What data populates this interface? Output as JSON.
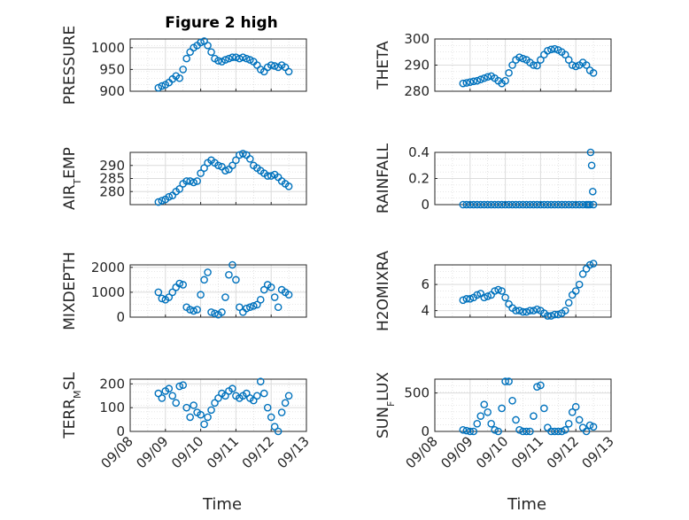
{
  "figure": {
    "title": "Figure 2 high",
    "xlabel": "Time"
  },
  "chart_data": [
    {
      "id": "pressure",
      "type": "scatter",
      "ylabel": "PRESSURE",
      "ylim": [
        900,
        1020
      ],
      "yticks": [
        900,
        950,
        1000
      ],
      "xlim": [
        0,
        5
      ],
      "xtick_labels": [
        "09/08",
        "09/09",
        "09/10",
        "09/11",
        "09/12",
        "09/13"
      ],
      "x": [
        0.8,
        0.9,
        1.0,
        1.1,
        1.2,
        1.3,
        1.4,
        1.5,
        1.6,
        1.7,
        1.8,
        1.9,
        2.0,
        2.1,
        2.2,
        2.3,
        2.4,
        2.5,
        2.6,
        2.7,
        2.8,
        2.9,
        3.0,
        3.1,
        3.2,
        3.3,
        3.4,
        3.5,
        3.6,
        3.7,
        3.8,
        3.9,
        4.0,
        4.1,
        4.2,
        4.3,
        4.4,
        4.5
      ],
      "values": [
        908,
        912,
        915,
        920,
        928,
        935,
        930,
        950,
        975,
        990,
        1000,
        1005,
        1012,
        1015,
        1005,
        990,
        975,
        970,
        968,
        972,
        975,
        978,
        978,
        975,
        978,
        975,
        972,
        968,
        960,
        950,
        945,
        955,
        960,
        958,
        955,
        960,
        955,
        945
      ]
    },
    {
      "id": "theta",
      "type": "scatter",
      "ylabel": "THETA",
      "ylim": [
        280,
        300
      ],
      "yticks": [
        280,
        290,
        300
      ],
      "xlim": [
        0,
        5
      ],
      "xtick_labels": [
        "09/08",
        "09/09",
        "09/10",
        "09/11",
        "09/12",
        "09/13"
      ],
      "x": [
        0.8,
        0.9,
        1.0,
        1.1,
        1.2,
        1.3,
        1.4,
        1.5,
        1.6,
        1.7,
        1.8,
        1.9,
        2.0,
        2.1,
        2.2,
        2.3,
        2.4,
        2.5,
        2.6,
        2.7,
        2.8,
        2.9,
        3.0,
        3.1,
        3.2,
        3.3,
        3.4,
        3.5,
        3.6,
        3.7,
        3.8,
        3.9,
        4.0,
        4.1,
        4.2,
        4.3,
        4.4,
        4.5
      ],
      "values": [
        283,
        283.2,
        283.5,
        283.8,
        284,
        284.5,
        285,
        285.5,
        285.8,
        285,
        284,
        283,
        284,
        287,
        290,
        292,
        293,
        292.5,
        292,
        291,
        290,
        289.8,
        292,
        294,
        295.5,
        296,
        296.2,
        295.8,
        295,
        294,
        292,
        290,
        289.5,
        290,
        291,
        290,
        288,
        287
      ]
    },
    {
      "id": "air_temp",
      "type": "scatter",
      "ylabel": "AIR_TEMP",
      "ylim": [
        275,
        295
      ],
      "yticks": [
        280,
        285,
        290
      ],
      "xlim": [
        0,
        5
      ],
      "xtick_labels": [
        "09/08",
        "09/09",
        "09/10",
        "09/11",
        "09/12",
        "09/13"
      ],
      "x": [
        0.8,
        0.9,
        1.0,
        1.1,
        1.2,
        1.3,
        1.4,
        1.5,
        1.6,
        1.7,
        1.8,
        1.9,
        2.0,
        2.1,
        2.2,
        2.3,
        2.4,
        2.5,
        2.6,
        2.7,
        2.8,
        2.9,
        3.0,
        3.1,
        3.2,
        3.3,
        3.4,
        3.5,
        3.6,
        3.7,
        3.8,
        3.9,
        4.0,
        4.1,
        4.2,
        4.3,
        4.4,
        4.5
      ],
      "values": [
        276,
        276.5,
        277,
        278,
        278.5,
        280,
        281,
        283,
        284,
        284,
        283.5,
        284,
        287,
        289,
        291,
        292,
        291,
        290,
        289.5,
        288,
        288.5,
        290,
        292,
        294,
        294.5,
        294,
        292.5,
        290,
        289,
        288,
        287,
        286,
        286,
        286.5,
        285.5,
        284,
        283,
        282
      ]
    },
    {
      "id": "rainfall",
      "type": "scatter",
      "ylabel": "RAINFALL",
      "ylim": [
        0,
        0.4
      ],
      "yticks": [
        0,
        0.2,
        0.4
      ],
      "xlim": [
        0,
        5
      ],
      "xtick_labels": [
        "09/08",
        "09/09",
        "09/10",
        "09/11",
        "09/12",
        "09/13"
      ],
      "x": [
        0.8,
        0.9,
        1.0,
        1.1,
        1.2,
        1.3,
        1.4,
        1.5,
        1.6,
        1.7,
        1.8,
        1.9,
        2.0,
        2.1,
        2.2,
        2.3,
        2.4,
        2.5,
        2.6,
        2.7,
        2.8,
        2.9,
        3.0,
        3.1,
        3.2,
        3.3,
        3.4,
        3.5,
        3.6,
        3.7,
        3.8,
        3.9,
        4.0,
        4.1,
        4.2,
        4.3,
        4.35,
        4.4,
        4.42,
        4.45,
        4.48,
        4.5
      ],
      "values": [
        0,
        0,
        0,
        0,
        0,
        0,
        0,
        0,
        0,
        0,
        0,
        0,
        0,
        0,
        0,
        0,
        0,
        0,
        0,
        0,
        0,
        0,
        0,
        0,
        0,
        0,
        0,
        0,
        0,
        0,
        0,
        0,
        0,
        0,
        0,
        0,
        0,
        0,
        0.4,
        0.3,
        0.1,
        0
      ]
    },
    {
      "id": "mixdepth",
      "type": "scatter",
      "ylabel": "MIXDEPTH",
      "ylim": [
        0,
        2100
      ],
      "yticks": [
        0,
        1000,
        2000
      ],
      "xlim": [
        0,
        5
      ],
      "xtick_labels": [
        "09/08",
        "09/09",
        "09/10",
        "09/11",
        "09/12",
        "09/13"
      ],
      "x": [
        0.8,
        0.9,
        1.0,
        1.1,
        1.2,
        1.3,
        1.4,
        1.5,
        1.6,
        1.7,
        1.8,
        1.9,
        2.0,
        2.1,
        2.2,
        2.3,
        2.4,
        2.5,
        2.6,
        2.7,
        2.8,
        2.9,
        3.0,
        3.1,
        3.2,
        3.3,
        3.4,
        3.5,
        3.6,
        3.7,
        3.8,
        3.9,
        4.0,
        4.1,
        4.2,
        4.3,
        4.4,
        4.5
      ],
      "values": [
        1000,
        750,
        700,
        800,
        1000,
        1200,
        1350,
        1300,
        400,
        300,
        250,
        300,
        900,
        1500,
        1800,
        200,
        150,
        100,
        200,
        800,
        1700,
        2100,
        1500,
        400,
        200,
        350,
        400,
        450,
        500,
        700,
        1100,
        1300,
        1200,
        800,
        400,
        1100,
        1000,
        900
      ]
    },
    {
      "id": "h2omixra",
      "type": "scatter",
      "ylabel": "H2OMIXRA",
      "ylim": [
        3.5,
        7.5
      ],
      "yticks": [
        4,
        6
      ],
      "xlim": [
        0,
        5
      ],
      "xtick_labels": [
        "09/08",
        "09/09",
        "09/10",
        "09/11",
        "09/12",
        "09/13"
      ],
      "x": [
        0.8,
        0.9,
        1.0,
        1.1,
        1.2,
        1.3,
        1.4,
        1.5,
        1.6,
        1.7,
        1.8,
        1.9,
        2.0,
        2.1,
        2.2,
        2.3,
        2.4,
        2.5,
        2.6,
        2.7,
        2.8,
        2.9,
        3.0,
        3.1,
        3.2,
        3.3,
        3.4,
        3.5,
        3.6,
        3.7,
        3.8,
        3.9,
        4.0,
        4.1,
        4.2,
        4.3,
        4.4,
        4.5
      ],
      "values": [
        4.8,
        4.9,
        4.9,
        5.0,
        5.2,
        5.3,
        5.0,
        5.1,
        5.2,
        5.5,
        5.6,
        5.5,
        5.0,
        4.5,
        4.2,
        4.0,
        4.0,
        3.9,
        3.9,
        4.0,
        4.0,
        4.1,
        4.0,
        3.8,
        3.6,
        3.6,
        3.7,
        3.7,
        3.8,
        4.0,
        4.6,
        5.2,
        5.5,
        6.0,
        6.8,
        7.2,
        7.5,
        7.6
      ]
    },
    {
      "id": "terr_msl",
      "type": "scatter",
      "ylabel": "TERR_MSL",
      "ylim": [
        0,
        220
      ],
      "yticks": [
        0,
        100,
        200
      ],
      "xlim": [
        0,
        5
      ],
      "xtick_labels": [
        "09/08",
        "09/09",
        "09/10",
        "09/11",
        "09/12",
        "09/13"
      ],
      "x": [
        0.8,
        0.9,
        1.0,
        1.1,
        1.2,
        1.3,
        1.4,
        1.5,
        1.6,
        1.7,
        1.8,
        1.9,
        2.0,
        2.1,
        2.2,
        2.3,
        2.4,
        2.5,
        2.6,
        2.7,
        2.8,
        2.9,
        3.0,
        3.1,
        3.2,
        3.3,
        3.4,
        3.5,
        3.6,
        3.7,
        3.8,
        3.9,
        4.0,
        4.1,
        4.2,
        4.3,
        4.4,
        4.5
      ],
      "values": [
        160,
        140,
        170,
        180,
        150,
        120,
        190,
        195,
        100,
        60,
        110,
        80,
        70,
        30,
        60,
        90,
        120,
        140,
        160,
        150,
        170,
        180,
        150,
        140,
        150,
        160,
        140,
        130,
        150,
        210,
        160,
        100,
        60,
        20,
        0,
        80,
        120,
        150
      ]
    },
    {
      "id": "sun_flux",
      "type": "scatter",
      "ylabel": "SUN_FLUX",
      "ylim": [
        0,
        680
      ],
      "yticks": [
        0,
        500
      ],
      "xlim": [
        0,
        5
      ],
      "xtick_labels": [
        "09/08",
        "09/09",
        "09/10",
        "09/11",
        "09/12",
        "09/13"
      ],
      "x": [
        0.8,
        0.9,
        1.0,
        1.1,
        1.2,
        1.3,
        1.4,
        1.5,
        1.6,
        1.7,
        1.8,
        1.9,
        2.0,
        2.1,
        2.2,
        2.3,
        2.4,
        2.5,
        2.6,
        2.7,
        2.8,
        2.9,
        3.0,
        3.1,
        3.2,
        3.3,
        3.4,
        3.5,
        3.6,
        3.7,
        3.8,
        3.9,
        4.0,
        4.1,
        4.2,
        4.3,
        4.4,
        4.5
      ],
      "values": [
        20,
        10,
        0,
        0,
        100,
        200,
        350,
        250,
        100,
        20,
        0,
        300,
        650,
        650,
        400,
        150,
        20,
        0,
        0,
        0,
        200,
        580,
        600,
        300,
        50,
        0,
        0,
        0,
        0,
        20,
        100,
        250,
        320,
        150,
        50,
        0,
        80,
        60
      ]
    }
  ]
}
